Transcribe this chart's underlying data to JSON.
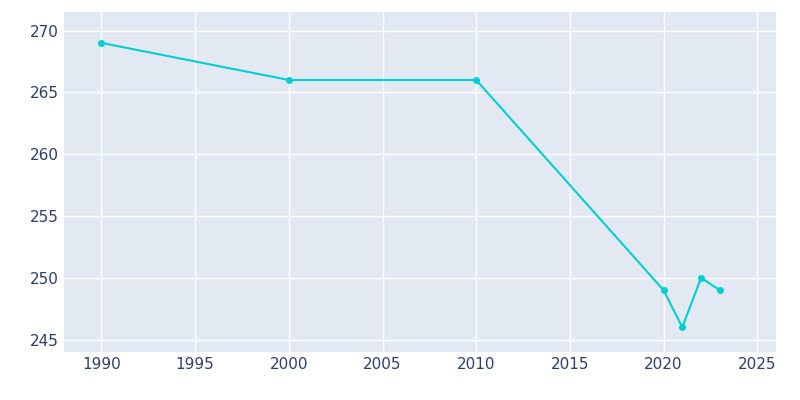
{
  "years": [
    1990,
    2000,
    2010,
    2020,
    2021,
    2022,
    2023
  ],
  "population": [
    269,
    266,
    266,
    249,
    246,
    250,
    249
  ],
  "line_color": "#00CED1",
  "marker_color": "#00CED1",
  "plot_background_color": "#E3E9F3",
  "fig_background_color": "#FFFFFF",
  "grid_color": "#FFFFFF",
  "text_color": "#2C3E6B",
  "xlim": [
    1988,
    2026
  ],
  "ylim": [
    244,
    271.5
  ],
  "xticks": [
    1990,
    1995,
    2000,
    2005,
    2010,
    2015,
    2020,
    2025
  ],
  "yticks": [
    245,
    250,
    255,
    260,
    265,
    270
  ]
}
